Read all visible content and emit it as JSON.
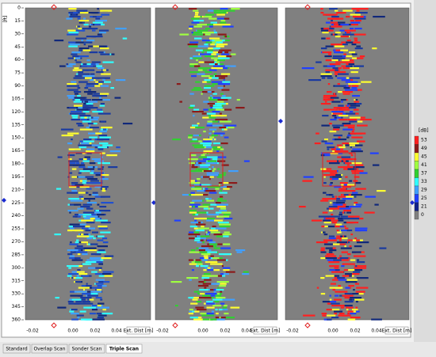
{
  "depth_axis": {
    "unit": "[ft]",
    "ticks": [
      "0",
      "15",
      "30",
      "45",
      "60",
      "75",
      "90",
      "105",
      "120",
      "135",
      "150",
      "165",
      "180",
      "195",
      "210",
      "225",
      "240",
      "255",
      "270",
      "285",
      "300",
      "315",
      "330",
      "345",
      "360"
    ]
  },
  "panels": [
    {
      "x_ticks": [
        "-0.02",
        "0.00",
        "0.02",
        "0.04"
      ],
      "x_label": "Ext. Dist [m]"
    },
    {
      "x_ticks": [
        "-0.02",
        "0.00",
        "0.02",
        "0.04"
      ],
      "x_label": "Ext. Dist [m]"
    },
    {
      "x_ticks": [
        "-0.02",
        "0.00",
        "0.02",
        "0.04"
      ],
      "x_label": "Ext. Dist [m]"
    }
  ],
  "legend": {
    "unit": "[dB]",
    "levels": [
      {
        "label": "53",
        "color": "#ff2020"
      },
      {
        "label": "49",
        "color": "#8b1a1a"
      },
      {
        "label": "45",
        "color": "#ffff30"
      },
      {
        "label": "41",
        "color": "#a0ff40"
      },
      {
        "label": "37",
        "color": "#30d030"
      },
      {
        "label": "33",
        "color": "#30ffff"
      },
      {
        "label": "29",
        "color": "#40a0ff"
      },
      {
        "label": "25",
        "color": "#2040ff"
      },
      {
        "label": "21",
        "color": "#10208a"
      },
      {
        "label": "0",
        "color": "#808080"
      }
    ]
  },
  "tabs": [
    "Standard",
    "Overlap Scan",
    "Sonder Scan",
    "Triple Scan"
  ]
}
